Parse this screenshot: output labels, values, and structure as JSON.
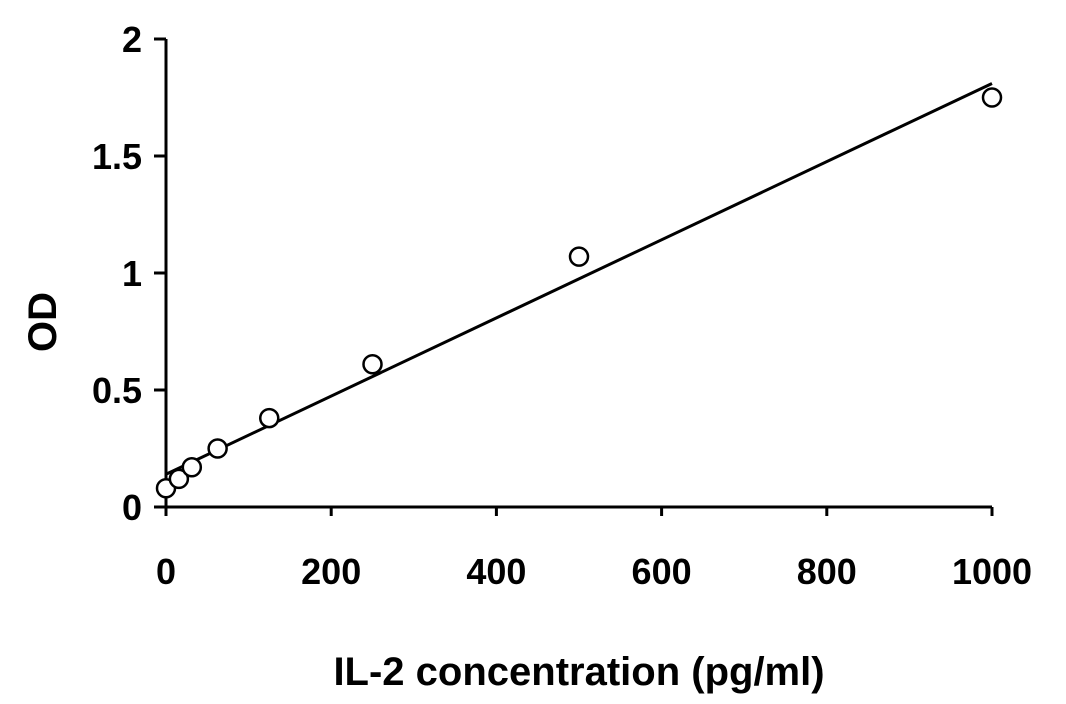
{
  "chart_data": {
    "type": "scatter",
    "xlabel": "IL-2 concentration (pg/ml)",
    "ylabel": "OD",
    "xlim": [
      0,
      1000
    ],
    "ylim": [
      0,
      2
    ],
    "x_ticks": [
      0,
      200,
      400,
      600,
      800,
      1000
    ],
    "x_tick_labels": [
      "0",
      "200",
      "400",
      "600",
      "800",
      "1000"
    ],
    "y_ticks": [
      0,
      0.5,
      1,
      1.5,
      2
    ],
    "y_tick_labels": [
      "0",
      "0.5",
      "1",
      "1.5",
      "2"
    ],
    "grid": false,
    "series": [
      {
        "x": [
          0,
          15.6,
          31.25,
          62.5,
          125,
          250,
          500,
          1000
        ],
        "y": [
          0.08,
          0.12,
          0.17,
          0.25,
          0.38,
          0.61,
          1.07,
          1.75
        ],
        "marker": "open-circle"
      }
    ],
    "trendline": {
      "x": [
        0,
        1000
      ],
      "y": [
        0.14,
        1.81
      ],
      "type": "linear"
    },
    "colors": {
      "marker_fill": "#ffffff",
      "ink": "#000000"
    }
  }
}
